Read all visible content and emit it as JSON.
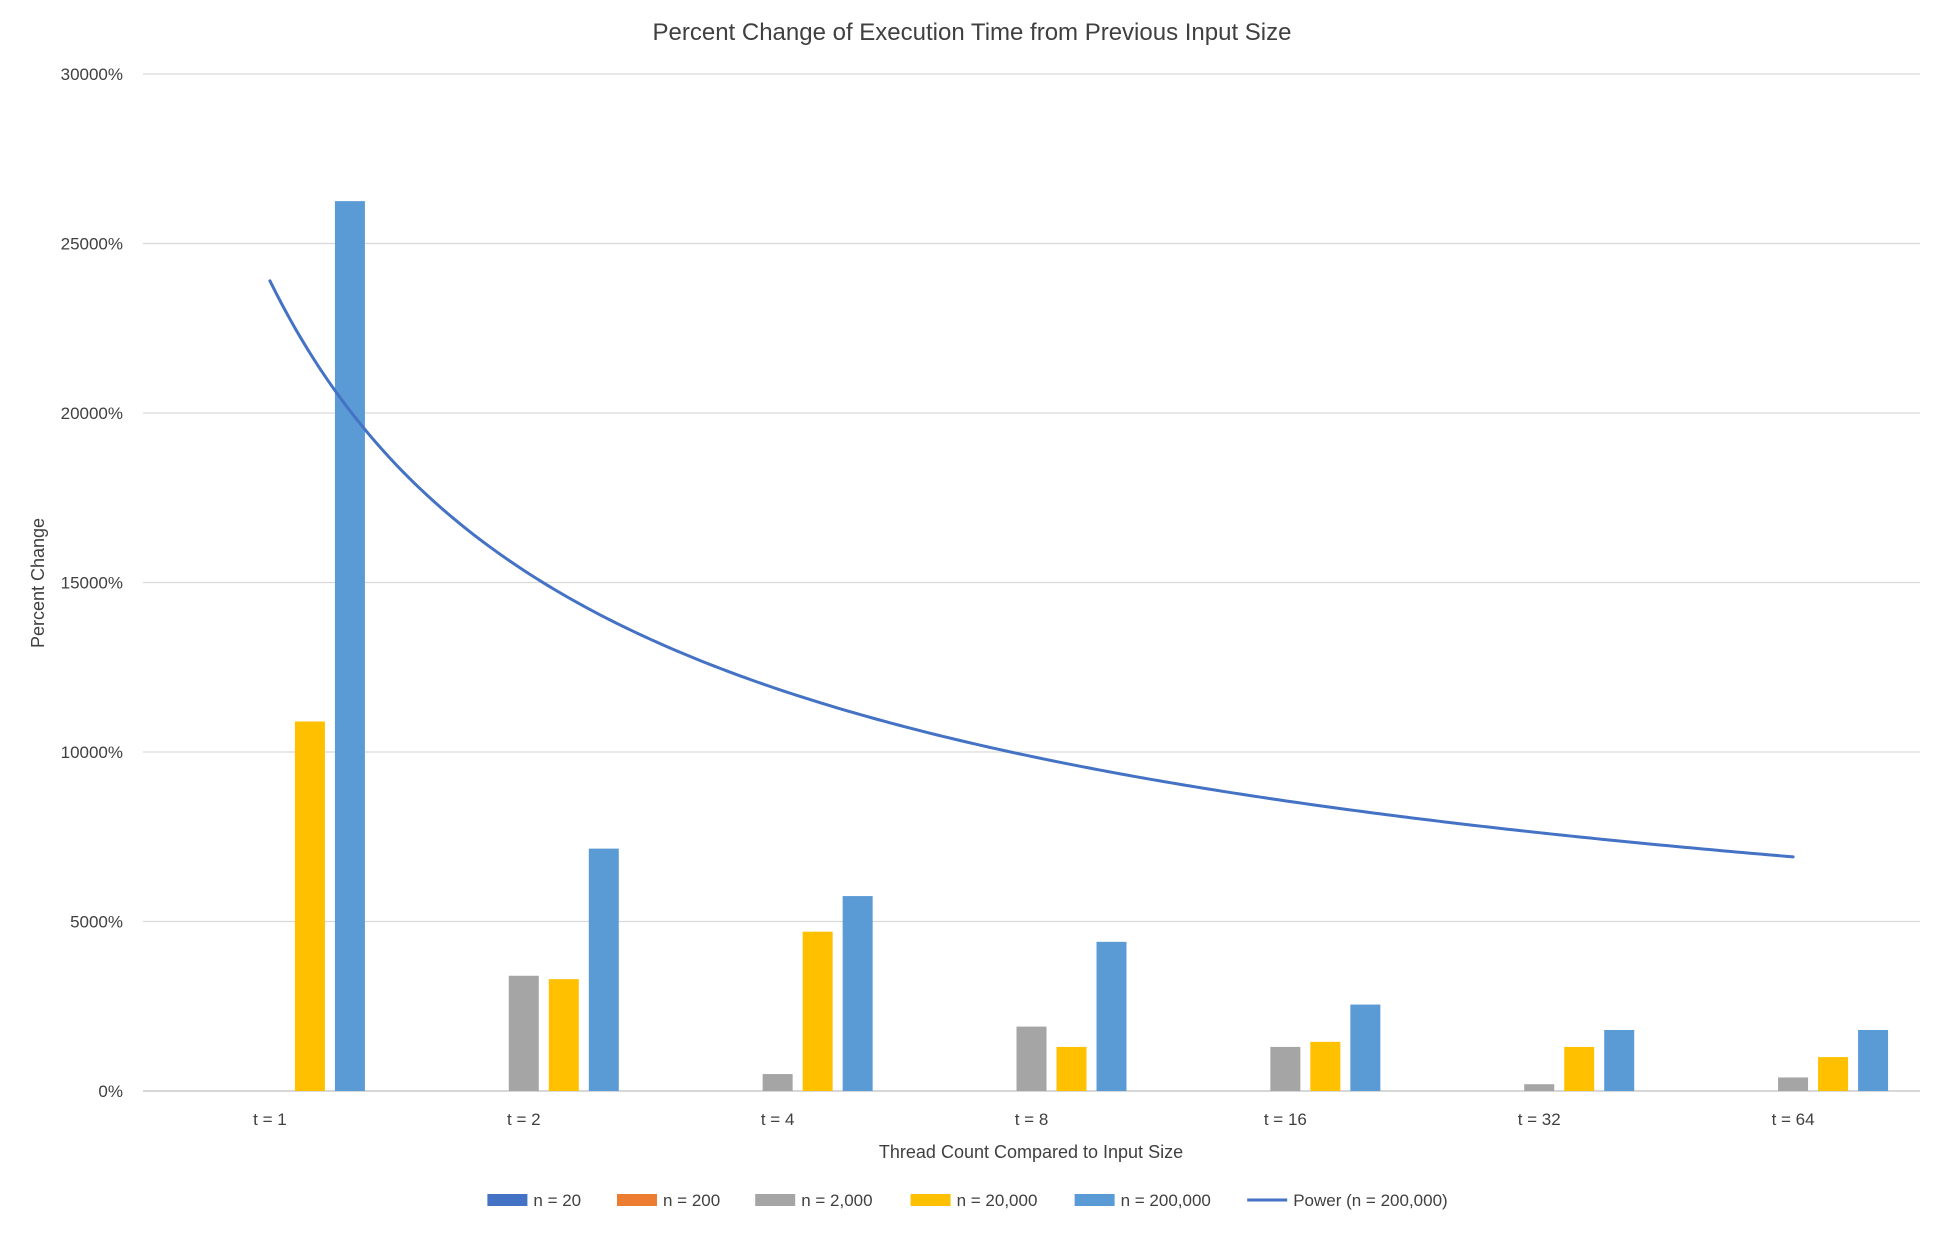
{
  "chart_data": {
    "type": "bar",
    "title": "Percent Change of Execution Time from Previous Input Size",
    "xlabel": "Thread Count Compared to Input Size",
    "ylabel": "Percent Change",
    "categories": [
      "t = 1",
      "t = 2",
      "t = 4",
      "t = 8",
      "t = 16",
      "t = 32",
      "t = 64"
    ],
    "ylim": [
      0,
      30000
    ],
    "yticks": [
      0,
      5000,
      10000,
      15000,
      20000,
      25000,
      30000
    ],
    "ytick_labels": [
      "0%",
      "5000%",
      "10000%",
      "15000%",
      "20000%",
      "25000%",
      "30000%"
    ],
    "grid": true,
    "legend_position": "bottom",
    "series": [
      {
        "name": "n = 20",
        "color": "#4472c4",
        "values": [
          0,
          0,
          0,
          0,
          0,
          0,
          0
        ]
      },
      {
        "name": "n = 200",
        "color": "#ed7d31",
        "values": [
          0,
          0,
          0,
          0,
          0,
          0,
          0
        ]
      },
      {
        "name": "n = 2,000",
        "color": "#a5a5a5",
        "values": [
          0,
          3400,
          500,
          1900,
          1300,
          200,
          400
        ]
      },
      {
        "name": "n = 20,000",
        "color": "#ffc000",
        "values": [
          10900,
          3300,
          4700,
          1300,
          1450,
          1300,
          1000
        ]
      },
      {
        "name": "n = 200,000",
        "color": "#5b9bd5",
        "values": [
          26250,
          7150,
          5750,
          4400,
          2550,
          1800,
          1800
        ]
      }
    ],
    "trendline": {
      "name": "Power (n = 200,000)",
      "type": "power",
      "color": "#4472c4",
      "coefficient": 23900,
      "exponent": -0.638,
      "x_start": 1,
      "x_end": 7
    }
  }
}
